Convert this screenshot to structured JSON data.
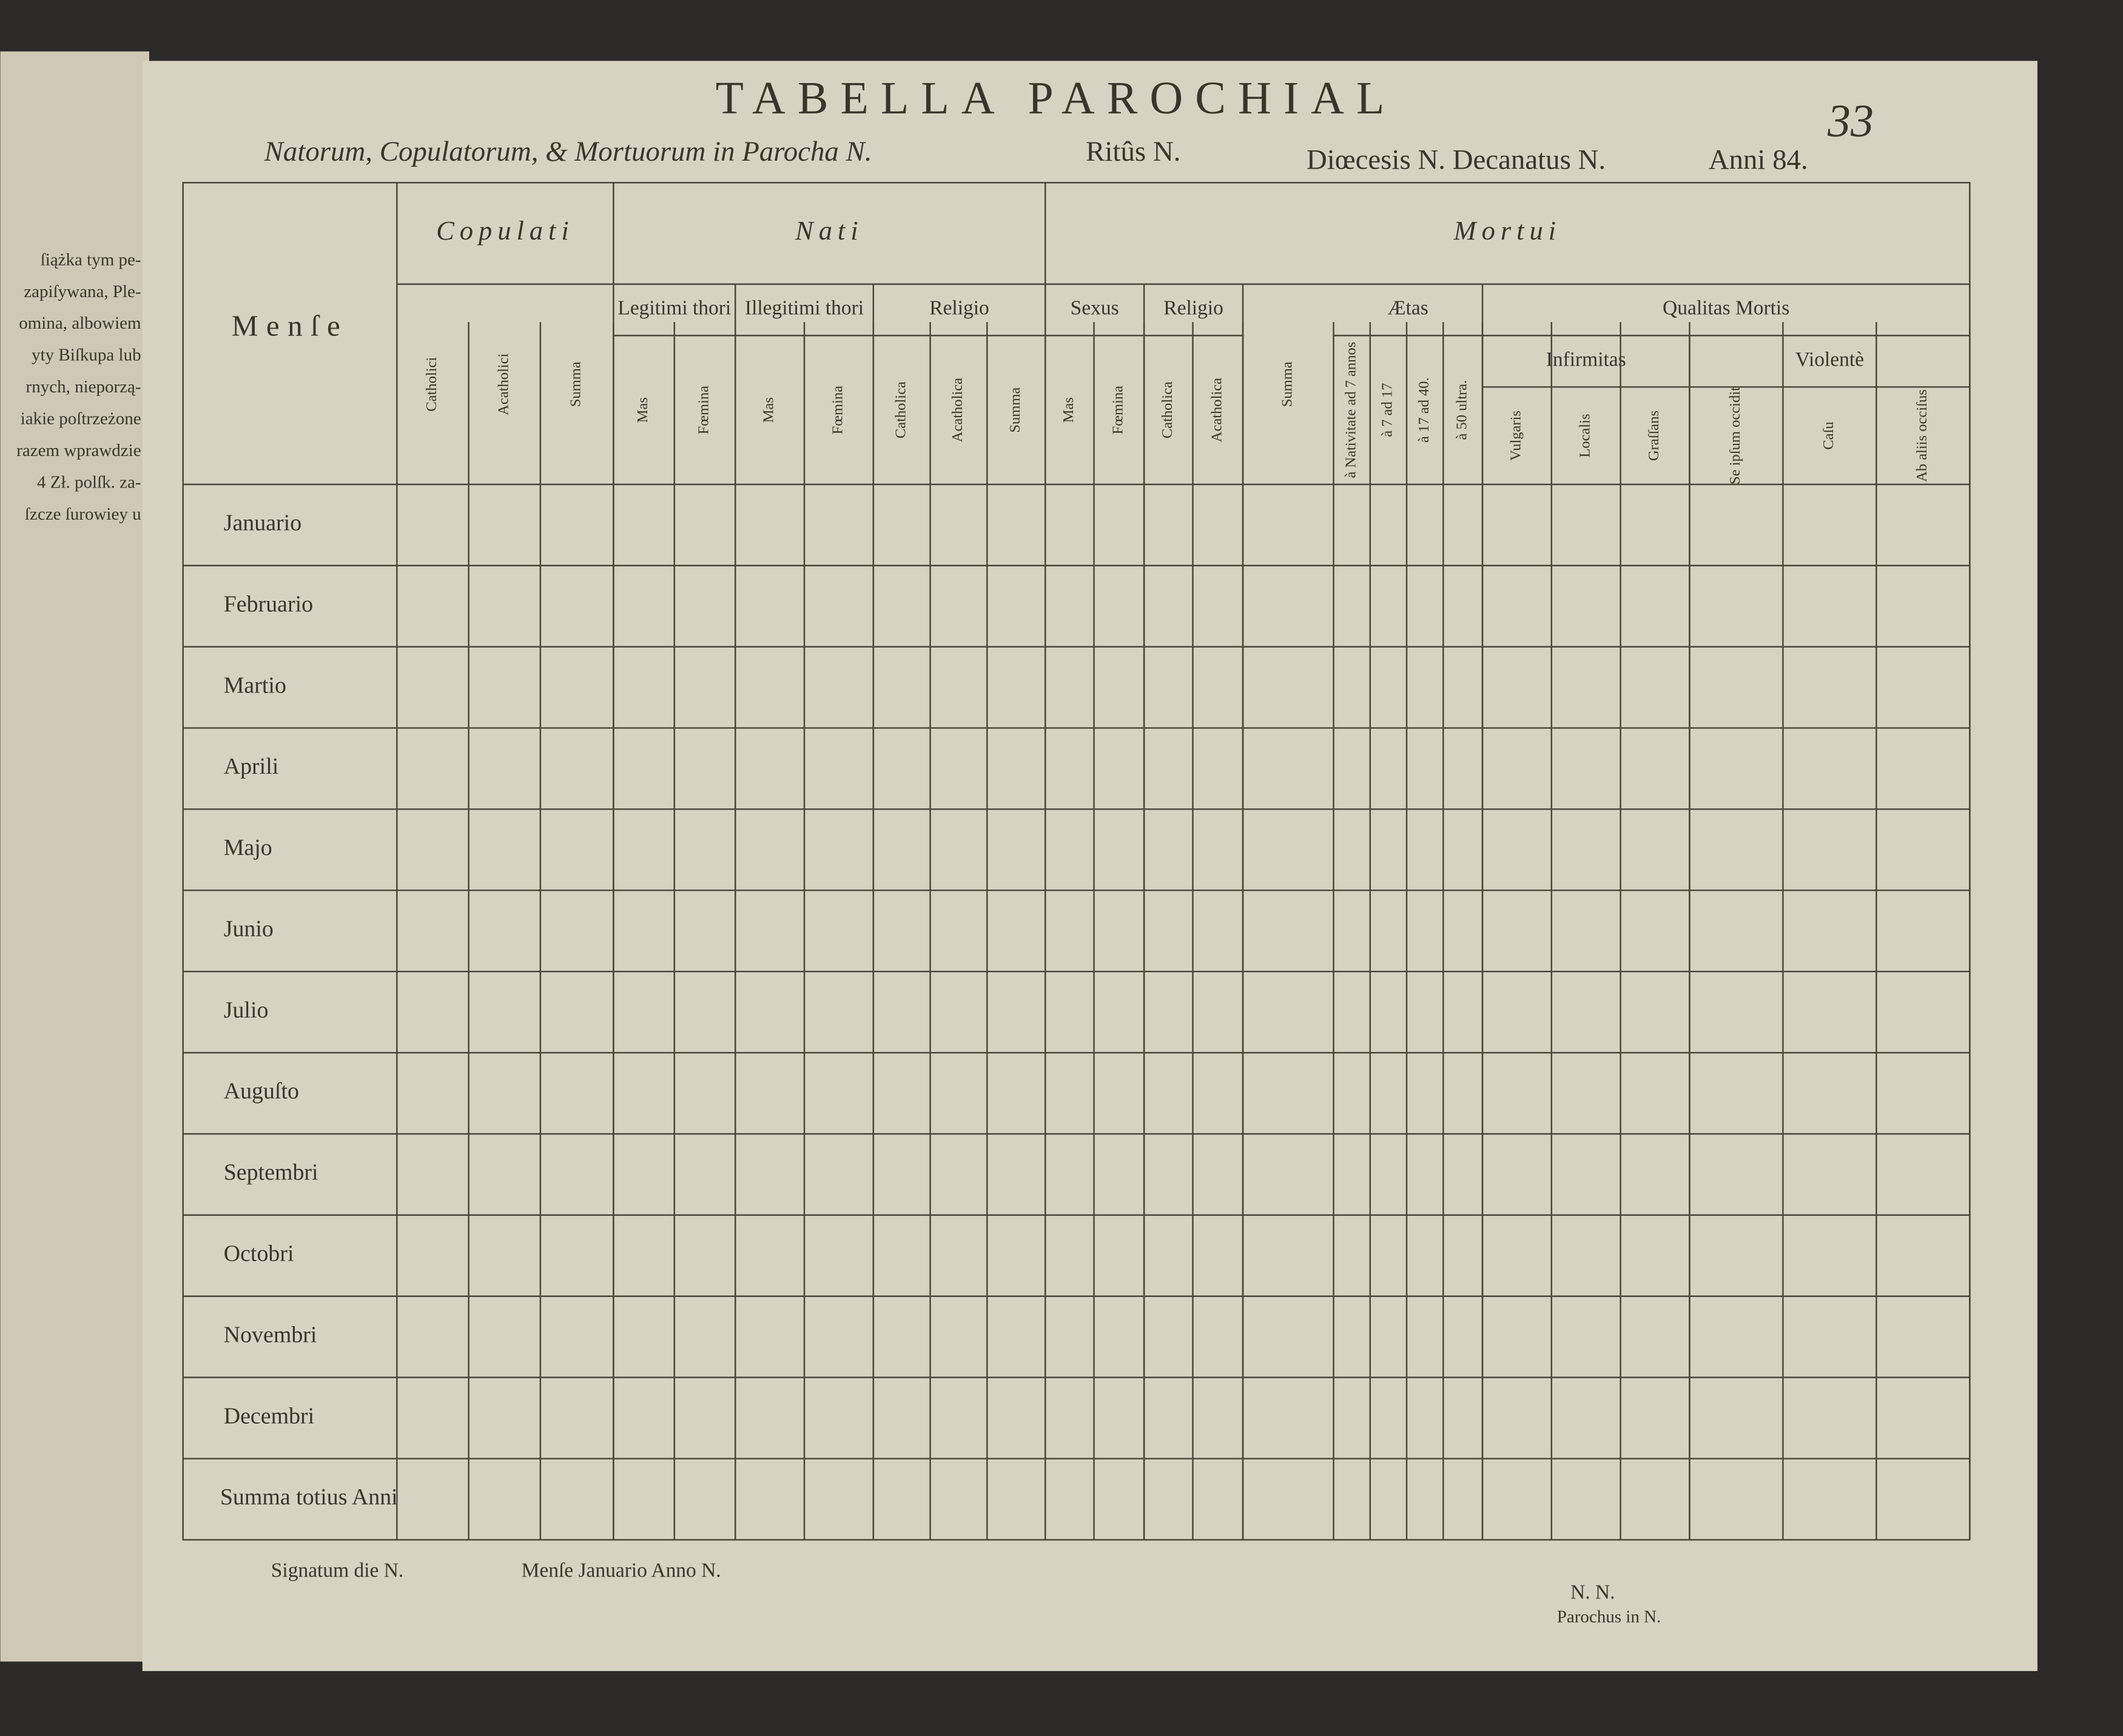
{
  "header": {
    "title": "TABELLA PAROCHIAL",
    "subtitle": [
      "Natorum, Copulatorum, & Mortuorum in Parocha N.",
      "Ritûs N.",
      "Diœcesis N. Decanatus N.",
      "Anni 84."
    ],
    "page_number": "33"
  },
  "left_page": {
    "lines": [
      "ſiążka tym pe-",
      "zapiſywana, Ple-",
      "omina, albowiem",
      "yty Biſkupa lub",
      "rnych, nieporzą-",
      "iakie poſtrzeżone",
      "razem wprawdzie",
      "4 Zł. polſk. za-",
      "ſzcze ſurowiey u"
    ]
  },
  "table": {
    "row_header": "Menſe",
    "groups": [
      {
        "label": "Copulati",
        "children": [
          "Catholici",
          "Acatholici",
          "Summa"
        ]
      },
      {
        "label": "Nati",
        "children": [
          {
            "label": "Legitimi thori",
            "children": [
              "Mas",
              "Fœmina"
            ]
          },
          {
            "label": "Illegitimi thori",
            "children": [
              "Mas",
              "Fœmina"
            ]
          },
          {
            "label": "Religio",
            "children": [
              "Catholica",
              "Acatholica",
              "Summa"
            ]
          }
        ]
      },
      {
        "label": "Mortui",
        "children": [
          {
            "label": "Sexus",
            "children": [
              "Mas",
              "Fœmina"
            ]
          },
          {
            "label": "Religio",
            "children": [
              "Catholica",
              "Acatholica"
            ]
          },
          "Summa",
          {
            "label": "Ætas",
            "children": [
              "à Nativitate ad 7 annos",
              "à 7 ad 17",
              "à 17 ad 40.",
              "à 50 ultra."
            ]
          },
          {
            "label": "Qualitas Mortis",
            "children": [
              {
                "label": "Infirmitas",
                "children": [
                  "Vulgaris",
                  "Localis",
                  "Graſſans"
                ]
              },
              {
                "label": "Violentè",
                "children": [
                  "Se ipſum occidit",
                  "Caſu",
                  "Ab aliis occiſus"
                ]
              }
            ]
          }
        ]
      }
    ],
    "rows": [
      "Januario",
      "Februario",
      "Martio",
      "Aprili",
      "Majo",
      "Junio",
      "Julio",
      "Auguſto",
      "Septembri",
      "Octobri",
      "Novembri",
      "Decembri",
      "Summa totius Anni"
    ]
  },
  "footer": {
    "signed": "Signatum die N.",
    "month": "Menſe Januario Anno N.",
    "signature": "N. N.",
    "role": "Parochus in N."
  }
}
